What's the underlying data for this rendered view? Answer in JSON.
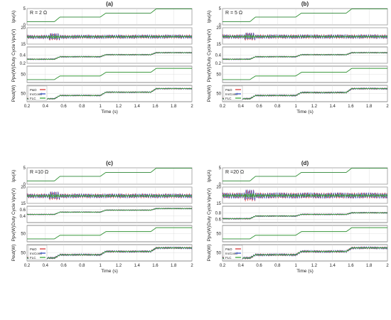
{
  "chart_data": [
    {
      "type": "line",
      "label": "(a)",
      "condition": "R = 2 Ω",
      "xlabel": "Time (s)",
      "xlim": [
        0.2,
        2
      ],
      "xticks": [
        0.2,
        0.4,
        0.6,
        0.8,
        1,
        1.2,
        1.4,
        1.6,
        1.8,
        2
      ],
      "legend": {
        "placement": "top-left of Pout subplot",
        "entries": [
          "P&O",
          "IncCond",
          "FLC"
        ]
      },
      "subplots": [
        {
          "ylabel": "Ipv(A)",
          "ylim": [
            0,
            5
          ],
          "yticks": [
            0,
            5
          ],
          "x": [
            0.2,
            0.5,
            0.56,
            1.0,
            1.06,
            1.55,
            1.61,
            2.0
          ],
          "y": [
            1.0,
            1.0,
            2.4,
            2.4,
            3.6,
            3.6,
            4.9,
            4.9
          ],
          "oscillation": 0.0
        },
        {
          "ylabel": "Vpv(V)",
          "ylim": [
            15,
            20
          ],
          "yticks": [
            15,
            20
          ],
          "x": [
            0.2,
            2.0
          ],
          "y": [
            17.2,
            17.3
          ],
          "oscillation": 0.55,
          "transient_at": 0.5
        },
        {
          "ylabel": "Duty Cycle",
          "ylim": [
            0.2,
            0.6
          ],
          "yticks": [
            0.2,
            0.4
          ],
          "x": [
            0.2,
            0.5,
            0.56,
            1.0,
            1.06,
            1.55,
            1.61,
            2.0
          ],
          "y": [
            0.3,
            0.3,
            0.36,
            0.36,
            0.41,
            0.41,
            0.46,
            0.46
          ],
          "oscillation": 0.015
        },
        {
          "ylabel": "Ppv(W)",
          "ylim": [
            0,
            100
          ],
          "yticks": [
            50
          ],
          "x": [
            0.2,
            0.5,
            0.56,
            1.0,
            1.06,
            1.55,
            1.61,
            2.0
          ],
          "y": [
            18,
            18,
            40,
            40,
            62,
            62,
            86,
            86
          ],
          "oscillation": 0.0
        },
        {
          "ylabel": "Pout(W)",
          "ylim": [
            0,
            100
          ],
          "yticks": [
            50
          ],
          "x": [
            0.2,
            0.5,
            0.56,
            1.0,
            1.06,
            1.55,
            1.61,
            2.0
          ],
          "y": [
            18,
            18,
            38,
            38,
            58,
            58,
            80,
            80
          ],
          "oscillation": 4
        }
      ]
    },
    {
      "type": "line",
      "label": "(b)",
      "condition": "R = 5 Ω",
      "xlabel": "Time (s)",
      "xlim": [
        0.2,
        2
      ],
      "xticks": [
        0.2,
        0.4,
        0.6,
        0.8,
        1,
        1.2,
        1.4,
        1.6,
        1.8,
        2
      ],
      "legend": {
        "placement": "top-left of Pout subplot",
        "entries": [
          "P&O",
          "IncCond",
          "FLC"
        ]
      },
      "subplots": [
        {
          "ylabel": "Ipv(A)",
          "ylim": [
            0,
            5
          ],
          "yticks": [
            0,
            5
          ],
          "x": [
            0.2,
            0.5,
            0.56,
            1.0,
            1.06,
            1.55,
            1.61,
            2.0
          ],
          "y": [
            1.0,
            1.0,
            2.4,
            2.4,
            3.6,
            3.6,
            4.9,
            4.9
          ],
          "oscillation": 0.0
        },
        {
          "ylabel": "Vpv(V)",
          "ylim": [
            15,
            20
          ],
          "yticks": [
            15,
            20
          ],
          "x": [
            0.2,
            2.0
          ],
          "y": [
            17.3,
            17.3
          ],
          "oscillation": 0.6,
          "transient_at": 0.5
        },
        {
          "ylabel": "Duty Cycle",
          "ylim": [
            0.2,
            0.6
          ],
          "yticks": [
            0.2,
            0.4
          ],
          "x": [
            0.2,
            0.5,
            0.56,
            1.0,
            1.06,
            1.55,
            1.61,
            2.0
          ],
          "y": [
            0.3,
            0.3,
            0.36,
            0.36,
            0.41,
            0.41,
            0.46,
            0.46
          ],
          "oscillation": 0.015
        },
        {
          "ylabel": "Ppv(W)",
          "ylim": [
            0,
            100
          ],
          "yticks": [
            50
          ],
          "x": [
            0.2,
            0.5,
            0.56,
            1.0,
            1.06,
            1.55,
            1.61,
            2.0
          ],
          "y": [
            18,
            18,
            40,
            40,
            62,
            62,
            86,
            86
          ],
          "oscillation": 0.0
        },
        {
          "ylabel": "Pout(W)",
          "ylim": [
            0,
            100
          ],
          "yticks": [
            50
          ],
          "x": [
            0.2,
            0.5,
            0.56,
            1.0,
            1.06,
            1.55,
            1.61,
            2.0
          ],
          "y": [
            18,
            18,
            38,
            38,
            56,
            56,
            80,
            80
          ],
          "oscillation": 5
        }
      ]
    },
    {
      "type": "line",
      "label": "(c)",
      "condition": "R =10 Ω",
      "xlabel": "Time (s)",
      "xlim": [
        0.2,
        2
      ],
      "xticks": [
        0.2,
        0.4,
        0.6,
        0.8,
        1,
        1.2,
        1.4,
        1.6,
        1.8,
        2
      ],
      "legend": {
        "placement": "top-left of Pout subplot",
        "entries": [
          "P&O",
          "IncCond",
          "FLC"
        ]
      },
      "subplots": [
        {
          "ylabel": "Ipv(A)",
          "ylim": [
            0,
            5
          ],
          "yticks": [
            0,
            5
          ],
          "x": [
            0.2,
            0.5,
            0.56,
            1.0,
            1.06,
            1.55,
            1.61,
            2.0
          ],
          "y": [
            1.0,
            1.0,
            2.4,
            2.4,
            3.6,
            3.6,
            4.9,
            4.9
          ],
          "oscillation": 0.0
        },
        {
          "ylabel": "Vpv(V)",
          "ylim": [
            15,
            20
          ],
          "yticks": [
            15,
            20
          ],
          "x": [
            0.2,
            2.0
          ],
          "y": [
            17.3,
            17.3
          ],
          "oscillation": 0.65,
          "transient_at": 0.5
        },
        {
          "ylabel": "Duty Cycle",
          "ylim": [
            0.2,
            0.7
          ],
          "yticks": [
            0.4,
            0.6
          ],
          "x": [
            0.2,
            0.5,
            0.56,
            1.0,
            1.06,
            1.55,
            1.61,
            2.0
          ],
          "y": [
            0.45,
            0.45,
            0.52,
            0.52,
            0.58,
            0.58,
            0.63,
            0.63
          ],
          "oscillation": 0.015
        },
        {
          "ylabel": "Ppv(W)",
          "ylim": [
            0,
            100
          ],
          "yticks": [
            50
          ],
          "x": [
            0.2,
            0.5,
            0.56,
            1.0,
            1.06,
            1.55,
            1.61,
            2.0
          ],
          "y": [
            18,
            18,
            40,
            40,
            62,
            62,
            86,
            86
          ],
          "oscillation": 0.0
        },
        {
          "ylabel": "Pout(W)",
          "ylim": [
            0,
            100
          ],
          "yticks": [
            50
          ],
          "x": [
            0.2,
            0.5,
            0.56,
            1.0,
            1.06,
            1.55,
            1.61,
            2.0
          ],
          "y": [
            18,
            18,
            38,
            38,
            58,
            58,
            80,
            80
          ],
          "oscillation": 6
        }
      ]
    },
    {
      "type": "line",
      "label": "(d)",
      "condition": "R =20 Ω",
      "xlabel": "Time (s)",
      "xlim": [
        0.2,
        2
      ],
      "xticks": [
        0.2,
        0.4,
        0.6,
        0.8,
        1,
        1.2,
        1.4,
        1.6,
        1.8,
        2
      ],
      "legend": {
        "placement": "top-left of Pout subplot",
        "entries": [
          "P&O",
          "IncCond",
          "FLC"
        ]
      },
      "subplots": [
        {
          "ylabel": "Ipv(A)",
          "ylim": [
            0,
            5
          ],
          "yticks": [
            0,
            5
          ],
          "x": [
            0.2,
            0.5,
            0.56,
            1.0,
            1.06,
            1.55,
            1.61,
            2.0
          ],
          "y": [
            1.0,
            1.0,
            2.4,
            2.4,
            3.6,
            3.6,
            4.9,
            4.9
          ],
          "oscillation": 0.0
        },
        {
          "ylabel": "Vpv(V)",
          "ylim": [
            15,
            20
          ],
          "yticks": [
            15,
            20
          ],
          "x": [
            0.2,
            2.0
          ],
          "y": [
            17.4,
            17.4
          ],
          "oscillation": 0.9,
          "transient_at": 0.5
        },
        {
          "ylabel": "Duty Cycle",
          "ylim": [
            0.5,
            1.0
          ],
          "yticks": [
            0.6,
            0.8
          ],
          "x": [
            0.2,
            0.5,
            0.56,
            1.0,
            1.06,
            1.55,
            1.61,
            2.0
          ],
          "y": [
            0.62,
            0.62,
            0.7,
            0.7,
            0.75,
            0.75,
            0.8,
            0.8
          ],
          "oscillation": 0.02
        },
        {
          "ylabel": "Ppv(W)",
          "ylim": [
            0,
            100
          ],
          "yticks": [
            50
          ],
          "x": [
            0.2,
            0.5,
            0.56,
            1.0,
            1.06,
            1.55,
            1.61,
            2.0
          ],
          "y": [
            18,
            18,
            40,
            40,
            62,
            62,
            86,
            86
          ],
          "oscillation": 0.0
        },
        {
          "ylabel": "Pout(W)",
          "ylim": [
            0,
            100
          ],
          "yticks": [
            50
          ],
          "x": [
            0.2,
            0.5,
            0.56,
            1.0,
            1.06,
            1.55,
            1.61,
            2.0
          ],
          "y": [
            18,
            18,
            38,
            38,
            58,
            58,
            80,
            80
          ],
          "oscillation": 7
        }
      ]
    }
  ],
  "series_colors": {
    "P&O": "#d62728",
    "IncCond": "#1f3fbf",
    "FLC": "#2ca02c"
  },
  "axis_color": "#444444",
  "grid_color": "#d8d8d8"
}
